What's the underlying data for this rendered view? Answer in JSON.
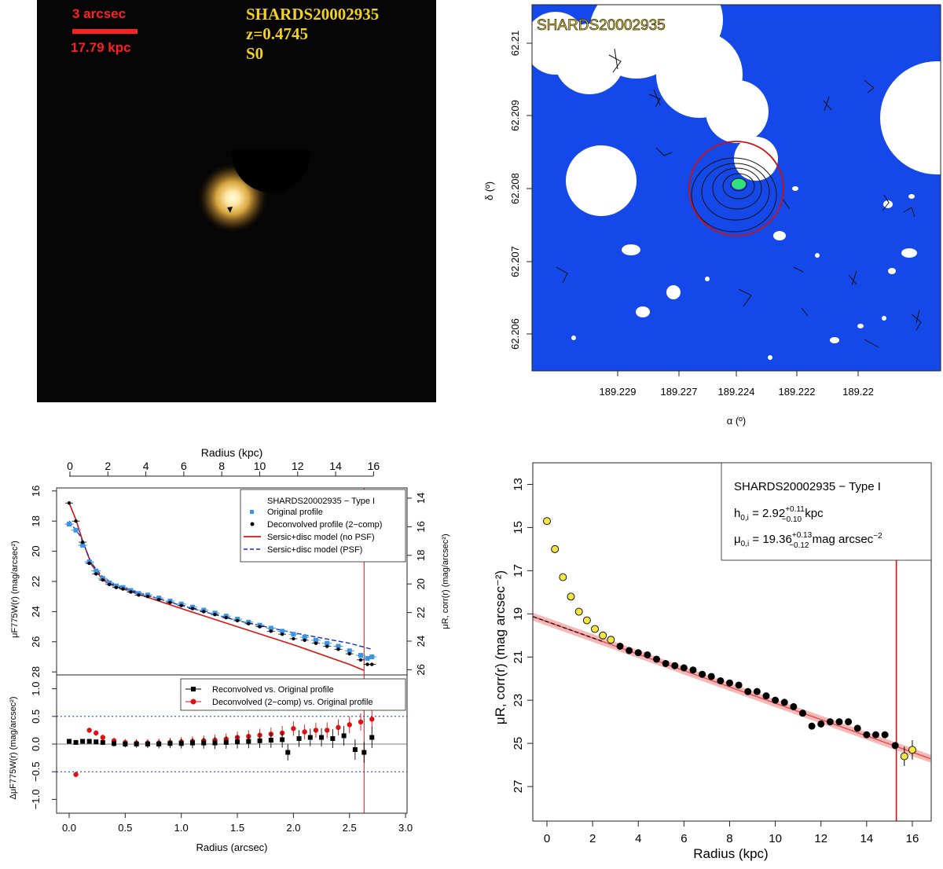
{
  "chart_data": [
    {
      "type": "image",
      "panel": "color-composite",
      "scalebar_label": "3 arcsec",
      "scalebar_kpc": "17.79 kpc",
      "object_name": "SHARDS20002935",
      "redshift": "z=0.4745",
      "morph_type": "S0",
      "colors": {
        "scalebar": "#ff2020",
        "annotation": "#f4d21a",
        "background": "#050505"
      }
    },
    {
      "type": "map",
      "panel": "sky-map",
      "title": "SHARDS20002935",
      "xlabel": "α (º)",
      "ylabel": "δ (º)",
      "x_ticks": [
        "189.229",
        "189.227",
        "189.224",
        "189.222",
        "189.22"
      ],
      "y_ticks": [
        "62.21",
        "62.209",
        "62.208",
        "62.207",
        "62.206"
      ],
      "colors": {
        "background": "#1548e8",
        "mask": "#ffffff",
        "circle": "#cc1111"
      }
    },
    {
      "type": "line",
      "panel": "surface-brightness-profile",
      "top_xlabel": "Radius (kpc)",
      "top_ticks": [
        "0",
        "2",
        "4",
        "6",
        "8",
        "10",
        "12",
        "14",
        "16"
      ],
      "ylabel_left": "μF775W(r)  (mag/arcsec²)",
      "ylabel_right": "μR, corr(r)  (mag/arcsec²)",
      "yticks_left": [
        "16",
        "18",
        "20",
        "22",
        "24",
        "26",
        "28"
      ],
      "yticks_right": [
        "14",
        "16",
        "18",
        "20",
        "22",
        "24",
        "26"
      ],
      "ylim": [
        28.2,
        15.8
      ],
      "xlim_arcsec": [
        -0.05,
        3.0
      ],
      "legend_title": "SHARDS20002935  −  Type I",
      "legend": [
        "Original profile",
        "Deconvolved profile (2−comp)",
        "Sersic+disc model (no PSF)",
        "Sersic+disc model (PSF)"
      ],
      "x_arcsec": [
        0.0,
        0.06,
        0.12,
        0.18,
        0.24,
        0.3,
        0.36,
        0.42,
        0.48,
        0.55,
        0.62,
        0.7,
        0.8,
        0.9,
        1.0,
        1.1,
        1.2,
        1.3,
        1.4,
        1.5,
        1.6,
        1.7,
        1.8,
        1.9,
        2.0,
        2.1,
        2.2,
        2.3,
        2.4,
        2.5,
        2.6,
        2.66,
        2.7
      ],
      "original": [
        18.2,
        18.6,
        19.6,
        20.7,
        21.3,
        21.8,
        22.1,
        22.3,
        22.4,
        22.6,
        22.8,
        22.9,
        23.1,
        23.3,
        23.5,
        23.7,
        23.9,
        24.1,
        24.3,
        24.5,
        24.7,
        24.9,
        25.1,
        25.3,
        25.5,
        25.7,
        25.9,
        26.1,
        26.3,
        26.6,
        26.9,
        27.1,
        27.0
      ],
      "deconvolved": [
        16.8,
        18.0,
        19.4,
        20.8,
        21.5,
        21.9,
        22.2,
        22.4,
        22.5,
        22.7,
        22.9,
        23.0,
        23.2,
        23.4,
        23.6,
        23.8,
        24.0,
        24.2,
        24.4,
        24.6,
        24.8,
        25.0,
        25.3,
        25.5,
        25.8,
        25.9,
        26.1,
        26.3,
        26.5,
        26.8,
        27.2,
        27.5,
        27.5
      ],
      "model_nopsf_x": [
        0.0,
        0.06,
        0.12,
        0.2,
        0.3,
        0.4,
        0.6,
        1.0,
        1.5,
        2.0,
        2.5,
        2.63
      ],
      "model_nopsf": [
        16.8,
        17.9,
        19.3,
        20.9,
        21.9,
        22.3,
        22.8,
        23.8,
        25.0,
        26.2,
        27.5,
        27.9
      ],
      "model_psf_x": [
        0.0,
        0.1,
        0.2,
        0.3,
        0.4,
        0.6,
        1.0,
        1.5,
        2.0,
        2.5,
        2.7
      ],
      "model_psf": [
        18.0,
        19.0,
        20.8,
        21.7,
        22.2,
        22.7,
        23.6,
        24.6,
        25.4,
        26.1,
        26.5
      ],
      "break_radius_arcsec": 2.63
    },
    {
      "type": "scatter",
      "panel": "residuals",
      "xlabel": "Radius (arcsec)",
      "ylabel": "ΔμF775W(r)  (mag/arcsec²)",
      "xticks": [
        "0.0",
        "0.5",
        "1.0",
        "1.5",
        "2.0",
        "2.5",
        "3.0"
      ],
      "yticks": [
        "1.0",
        "0.5",
        "0.0",
        "−0.5",
        "−1.0"
      ],
      "ylim": [
        -1.25,
        1.25
      ],
      "legend": [
        "Reconvolved vs. Original profile",
        "Deconvolved (2−comp) vs. Original profile"
      ],
      "reference_lines": [
        0.5,
        -0.5
      ],
      "x_black": [
        0.0,
        0.06,
        0.12,
        0.18,
        0.24,
        0.3,
        0.4,
        0.5,
        0.6,
        0.7,
        0.8,
        0.9,
        1.0,
        1.1,
        1.2,
        1.3,
        1.4,
        1.5,
        1.6,
        1.7,
        1.8,
        1.9,
        1.95,
        2.05,
        2.15,
        2.25,
        2.35,
        2.45,
        2.55,
        2.63,
        2.7
      ],
      "black": [
        0.05,
        0.03,
        0.05,
        0.05,
        0.04,
        0.03,
        0.01,
        0.0,
        0.0,
        0.0,
        0.0,
        0.01,
        0.01,
        0.02,
        0.02,
        0.02,
        0.03,
        0.04,
        0.05,
        0.06,
        0.07,
        0.08,
        -0.15,
        0.1,
        0.12,
        0.12,
        0.1,
        0.15,
        -0.1,
        -0.15,
        0.12
      ],
      "x_red": [
        0.06,
        0.18,
        0.24,
        0.3,
        0.4,
        0.5,
        0.6,
        0.7,
        0.8,
        0.9,
        1.0,
        1.1,
        1.2,
        1.3,
        1.4,
        1.5,
        1.6,
        1.7,
        1.8,
        1.9,
        2.0,
        2.1,
        2.2,
        2.3,
        2.4,
        2.5,
        2.6,
        2.7
      ],
      "red": [
        -0.55,
        0.25,
        0.2,
        0.12,
        0.06,
        0.03,
        0.02,
        0.02,
        0.02,
        0.03,
        0.04,
        0.05,
        0.06,
        0.07,
        0.09,
        0.12,
        0.14,
        0.16,
        0.18,
        0.2,
        0.28,
        0.22,
        0.25,
        0.25,
        0.3,
        0.35,
        0.4,
        0.45
      ]
    },
    {
      "type": "scatter",
      "panel": "disc-fit",
      "xlabel": "Radius (kpc)",
      "ylabel": "μR, corr(r) (mag arcsec⁻²)",
      "xticks": [
        "0",
        "2",
        "4",
        "6",
        "8",
        "10",
        "12",
        "14",
        "16"
      ],
      "yticks": [
        "13",
        "15",
        "17",
        "19",
        "21",
        "23",
        "25",
        "27"
      ],
      "xlim": [
        -0.6,
        16.8
      ],
      "ylim": [
        28.6,
        12.0
      ],
      "legend_title": "SHARDS20002935  −  Type I",
      "h_param": "h0,i = 2.92+0.11−0.10 kpc",
      "mu_param": "μ0,i = 19.36+0.13−0.12 mag arcsec−2",
      "fit_line": {
        "intercept": 19.36,
        "slope": 0.378
      },
      "break_radius_kpc": 15.3,
      "yellow_x": [
        0.0,
        0.35,
        0.7,
        1.05,
        1.4,
        1.75,
        2.1,
        2.45,
        2.8,
        15.65,
        16.0
      ],
      "yellow_y": [
        14.7,
        16.0,
        17.3,
        18.2,
        18.9,
        19.3,
        19.7,
        20.0,
        20.2,
        25.6,
        25.3
      ],
      "black_x": [
        3.2,
        3.6,
        4.0,
        4.4,
        4.8,
        5.2,
        5.6,
        6.0,
        6.4,
        6.8,
        7.2,
        7.6,
        8.0,
        8.4,
        8.8,
        9.2,
        9.6,
        10.0,
        10.4,
        10.8,
        11.2,
        11.6,
        12.0,
        12.4,
        12.8,
        13.2,
        13.6,
        14.0,
        14.4,
        14.8,
        15.25
      ],
      "black_y": [
        20.5,
        20.7,
        20.8,
        20.9,
        21.1,
        21.3,
        21.4,
        21.5,
        21.6,
        21.8,
        21.9,
        22.1,
        22.2,
        22.3,
        22.6,
        22.6,
        22.8,
        23.0,
        23.1,
        23.3,
        23.6,
        24.2,
        24.1,
        24.0,
        24.0,
        24.0,
        24.3,
        24.6,
        24.6,
        24.6,
        25.1
      ]
    }
  ]
}
